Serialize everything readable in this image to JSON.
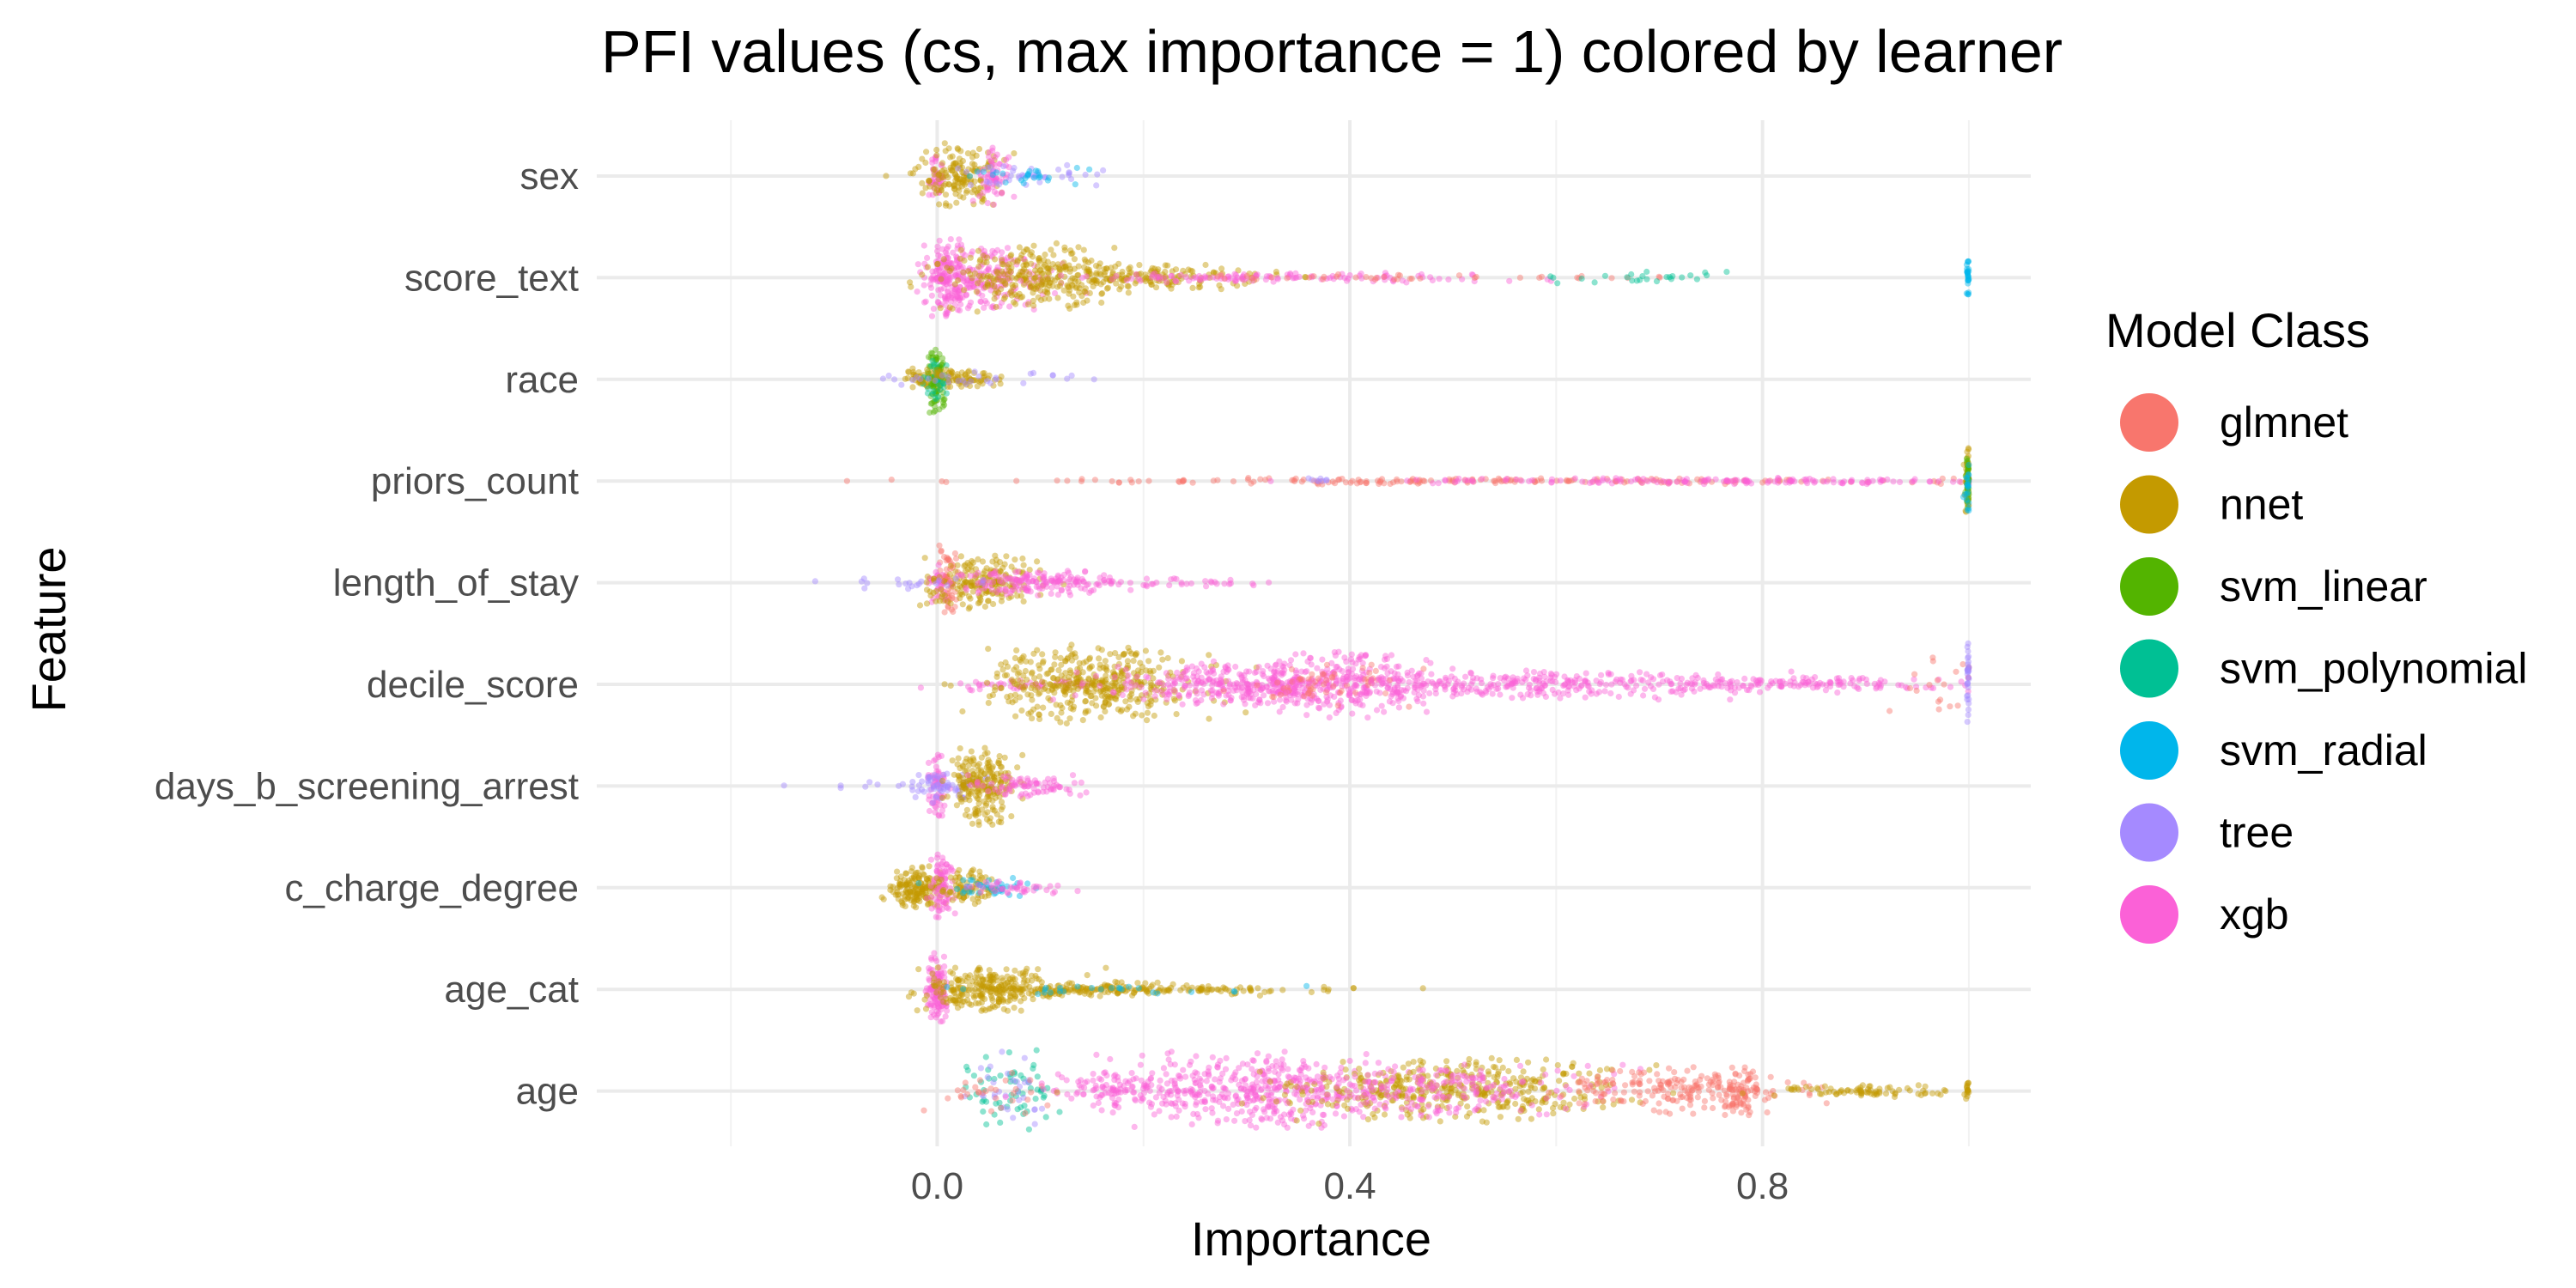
{
  "chart_data": {
    "type": "scatter",
    "title": "PFI values (cs, max importance = 1) colored by learner",
    "xlabel": "Importance",
    "ylabel": "Feature",
    "xlim": [
      -0.33,
      1.06
    ],
    "x_ticks": [
      0.0,
      0.4,
      0.8
    ],
    "x_tick_labels": [
      "0.0",
      "0.4",
      "0.8"
    ],
    "x_minor_ticks": [
      -0.2,
      0.2,
      0.6,
      1.0
    ],
    "grid": true,
    "categories": [
      "sex",
      "score_text",
      "race",
      "priors_count",
      "length_of_stay",
      "decile_score",
      "days_b_screening_arrest",
      "c_charge_degree",
      "age_cat",
      "age"
    ],
    "legend": {
      "title": "Model Class",
      "position": "right",
      "entries": [
        {
          "name": "glmnet",
          "color": "#F8766D"
        },
        {
          "name": "nnet",
          "color": "#C49A00"
        },
        {
          "name": "svm_linear",
          "color": "#53B400"
        },
        {
          "name": "svm_polynomial",
          "color": "#00C094"
        },
        {
          "name": "svm_radial",
          "color": "#00B6EB"
        },
        {
          "name": "tree",
          "color": "#A58AFF"
        },
        {
          "name": "xgb",
          "color": "#FB61D7"
        }
      ]
    },
    "series": [
      {
        "feature": "sex",
        "clusters": [
          {
            "learner": "xgb",
            "center": 0.0,
            "spread": 0.004,
            "n": 40,
            "height": 28
          },
          {
            "learner": "nnet",
            "center": 0.02,
            "spread": 0.02,
            "n": 160,
            "height": 42
          },
          {
            "learner": "xgb",
            "center": 0.055,
            "spread": 0.007,
            "n": 60,
            "height": 38
          },
          {
            "learner": "tree",
            "center": 0.09,
            "spread": 0.04,
            "n": 40,
            "height": 14
          },
          {
            "learner": "svm_radial",
            "center": 0.08,
            "spread": 0.03,
            "n": 25,
            "height": 12
          }
        ]
      },
      {
        "feature": "score_text",
        "clusters": [
          {
            "learner": "xgb",
            "center": 0.01,
            "spread": 0.01,
            "n": 160,
            "height": 50
          },
          {
            "learner": "xgb",
            "center": 0.05,
            "spread": 0.03,
            "n": 180,
            "height": 40
          },
          {
            "learner": "nnet",
            "center": 0.09,
            "spread": 0.04,
            "n": 260,
            "height": 44
          },
          {
            "learner": "nnet",
            "center": 0.2,
            "spread": 0.06,
            "n": 180,
            "height": 18
          },
          {
            "learner": "xgb",
            "center": 0.32,
            "spread": 0.1,
            "n": 120,
            "height": 6
          },
          {
            "learner": "glmnet",
            "center": 0.45,
            "spread": 0.15,
            "n": 40,
            "height": 4
          },
          {
            "learner": "svm_polynomial",
            "center": 0.7,
            "spread": 0.04,
            "n": 25,
            "height": 8
          },
          {
            "learner": "svm_radial",
            "center": 1.0,
            "spread": 0.001,
            "n": 25,
            "height": 26
          }
        ]
      },
      {
        "feature": "race",
        "clusters": [
          {
            "learner": "nnet",
            "center": -0.01,
            "spread": 0.015,
            "n": 60,
            "height": 14
          },
          {
            "learner": "svm_linear",
            "center": 0.0,
            "spread": 0.004,
            "n": 80,
            "height": 46
          },
          {
            "learner": "svm_polynomial",
            "center": 0.0,
            "spread": 0.006,
            "n": 30,
            "height": 24
          },
          {
            "learner": "nnet",
            "center": 0.02,
            "spread": 0.02,
            "n": 70,
            "height": 12
          },
          {
            "learner": "tree",
            "center": 0.03,
            "spread": 0.06,
            "n": 30,
            "height": 10
          }
        ]
      },
      {
        "feature": "priors_count",
        "clusters": [
          {
            "learner": "glmnet",
            "center": 0.55,
            "spread": 0.25,
            "n": 200,
            "height": 4
          },
          {
            "learner": "xgb",
            "center": 0.8,
            "spread": 0.18,
            "n": 160,
            "height": 4
          },
          {
            "learner": "tree",
            "center": 0.37,
            "spread": 0.01,
            "n": 8,
            "height": 4
          },
          {
            "learner": "nnet",
            "center": 1.0,
            "spread": 0.002,
            "n": 50,
            "height": 48
          },
          {
            "learner": "svm_linear",
            "center": 1.0,
            "spread": 0.002,
            "n": 30,
            "height": 40
          },
          {
            "learner": "svm_radial",
            "center": 1.0,
            "spread": 0.002,
            "n": 20,
            "height": 36
          }
        ]
      },
      {
        "feature": "length_of_stay",
        "clusters": [
          {
            "learner": "glmnet",
            "center": 0.01,
            "spread": 0.004,
            "n": 60,
            "height": 44
          },
          {
            "learner": "xgb",
            "center": 0.0,
            "spread": 0.005,
            "n": 30,
            "height": 30
          },
          {
            "learner": "nnet",
            "center": 0.04,
            "spread": 0.025,
            "n": 200,
            "height": 34
          },
          {
            "learner": "xgb",
            "center": 0.1,
            "spread": 0.04,
            "n": 160,
            "height": 16
          },
          {
            "learner": "xgb",
            "center": 0.2,
            "spread": 0.05,
            "n": 40,
            "height": 6
          },
          {
            "learner": "tree",
            "center": -0.03,
            "spread": 0.03,
            "n": 20,
            "height": 8
          }
        ]
      },
      {
        "feature": "decile_score",
        "clusters": [
          {
            "learner": "xgb",
            "center": 0.08,
            "spread": 0.04,
            "n": 50,
            "height": 8
          },
          {
            "learner": "nnet",
            "center": 0.15,
            "spread": 0.05,
            "n": 420,
            "height": 50
          },
          {
            "learner": "xgb",
            "center": 0.28,
            "spread": 0.06,
            "n": 240,
            "height": 24
          },
          {
            "learner": "xgb",
            "center": 0.38,
            "spread": 0.05,
            "n": 320,
            "height": 40
          },
          {
            "learner": "glmnet",
            "center": 0.38,
            "spread": 0.04,
            "n": 60,
            "height": 30
          },
          {
            "learner": "xgb",
            "center": 0.58,
            "spread": 0.1,
            "n": 280,
            "height": 18
          },
          {
            "learner": "xgb",
            "center": 0.82,
            "spread": 0.08,
            "n": 140,
            "height": 10
          },
          {
            "learner": "glmnet",
            "center": 0.97,
            "spread": 0.02,
            "n": 20,
            "height": 40
          },
          {
            "learner": "tree",
            "center": 1.0,
            "spread": 0.001,
            "n": 30,
            "height": 50
          }
        ]
      },
      {
        "feature": "days_b_screening_arrest",
        "clusters": [
          {
            "learner": "xgb",
            "center": 0.0,
            "spread": 0.004,
            "n": 60,
            "height": 40
          },
          {
            "learner": "tree",
            "center": 0.01,
            "spread": 0.02,
            "n": 60,
            "height": 20
          },
          {
            "learner": "nnet",
            "center": 0.045,
            "spread": 0.015,
            "n": 220,
            "height": 48
          },
          {
            "learner": "xgb",
            "center": 0.09,
            "spread": 0.03,
            "n": 80,
            "height": 14
          },
          {
            "learner": "tree",
            "center": -0.06,
            "spread": 0.05,
            "n": 15,
            "height": 6
          }
        ]
      },
      {
        "feature": "c_charge_degree",
        "clusters": [
          {
            "learner": "nnet",
            "center": -0.02,
            "spread": 0.012,
            "n": 160,
            "height": 26
          },
          {
            "learner": "xgb",
            "center": 0.005,
            "spread": 0.006,
            "n": 80,
            "height": 42
          },
          {
            "learner": "nnet",
            "center": 0.03,
            "spread": 0.015,
            "n": 80,
            "height": 24
          },
          {
            "learner": "svm_radial",
            "center": 0.05,
            "spread": 0.02,
            "n": 40,
            "height": 14
          },
          {
            "learner": "xgb",
            "center": 0.07,
            "spread": 0.02,
            "n": 40,
            "height": 8
          }
        ]
      },
      {
        "feature": "age_cat",
        "clusters": [
          {
            "learner": "xgb",
            "center": 0.0,
            "spread": 0.005,
            "n": 120,
            "height": 48
          },
          {
            "learner": "nnet",
            "center": 0.05,
            "spread": 0.03,
            "n": 240,
            "height": 28
          },
          {
            "learner": "nnet",
            "center": 0.15,
            "spread": 0.06,
            "n": 160,
            "height": 10
          },
          {
            "learner": "nnet",
            "center": 0.27,
            "spread": 0.07,
            "n": 60,
            "height": 4
          },
          {
            "learner": "svm_radial",
            "center": 0.2,
            "spread": 0.08,
            "n": 25,
            "height": 6
          }
        ]
      },
      {
        "feature": "age",
        "clusters": [
          {
            "learner": "svm_polynomial",
            "center": 0.07,
            "spread": 0.02,
            "n": 60,
            "height": 50
          },
          {
            "learner": "tree",
            "center": 0.07,
            "spread": 0.02,
            "n": 30,
            "height": 50
          },
          {
            "learner": "glmnet",
            "center": 0.05,
            "spread": 0.03,
            "n": 30,
            "height": 30
          },
          {
            "learner": "xgb",
            "center": 0.18,
            "spread": 0.04,
            "n": 120,
            "height": 24
          },
          {
            "learner": "xgb",
            "center": 0.3,
            "spread": 0.06,
            "n": 380,
            "height": 48
          },
          {
            "learner": "nnet",
            "center": 0.5,
            "spread": 0.08,
            "n": 420,
            "height": 40
          },
          {
            "learner": "xgb",
            "center": 0.48,
            "spread": 0.08,
            "n": 220,
            "height": 36
          },
          {
            "learner": "glmnet",
            "center": 0.72,
            "spread": 0.05,
            "n": 200,
            "height": 30
          },
          {
            "learner": "glmnet",
            "center": 0.78,
            "spread": 0.01,
            "n": 60,
            "height": 36
          },
          {
            "learner": "nnet",
            "center": 0.9,
            "spread": 0.05,
            "n": 80,
            "height": 8
          },
          {
            "learner": "nnet",
            "center": 1.0,
            "spread": 0.002,
            "n": 15,
            "height": 12
          }
        ]
      }
    ]
  }
}
